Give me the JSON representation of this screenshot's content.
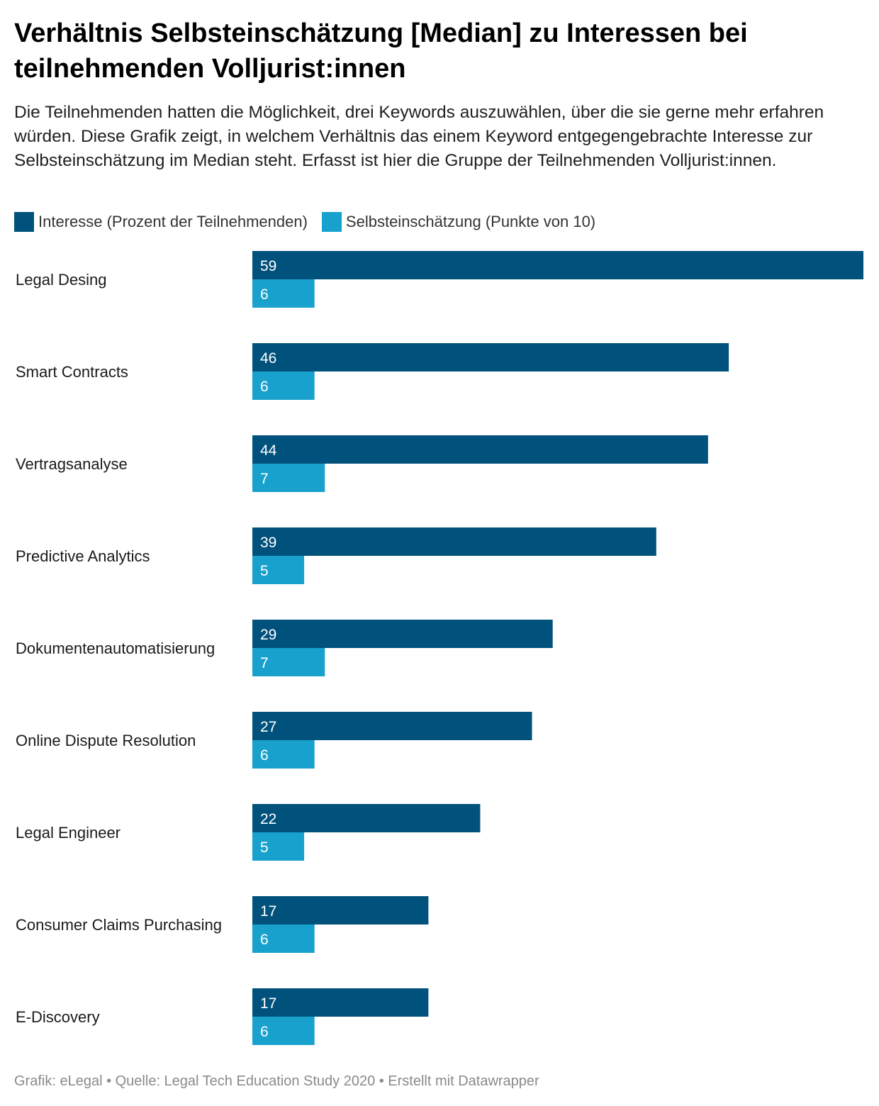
{
  "header": {
    "title": "Verhältnis Selbsteinschätzung [Median] zu Interessen bei teilnehmenden Volljurist:innen",
    "subtitle": "Die Teilnehmenden hatten die Möglichkeit, drei Keywords auszuwählen, über die sie gerne mehr erfahren würden. Diese Grafik zeigt, in welchem Verhältnis das einem Keyword entgegengebrachte Interesse zur Selbsteinschätzung im Median steht. Erfasst ist hier die Gruppe der Teilnehmenden Volljurist:innen."
  },
  "legend": {
    "items": [
      {
        "label": "Interesse (Prozent der Teilnehmenden)",
        "color": "#00527c"
      },
      {
        "label": "Selbsteinschätzung (Punkte von 10)",
        "color": "#18a1cd"
      }
    ]
  },
  "chart_data": {
    "type": "bar",
    "orientation": "horizontal",
    "title": "Verhältnis Selbsteinschätzung [Median] zu Interessen bei teilnehmenden Volljurist:innen",
    "categories": [
      "Legal Desing",
      "Smart Contracts",
      "Vertragsanalyse",
      "Predictive Analytics",
      "Dokumentenautomatisierung",
      "Online Dispute Resolution",
      "Legal Engineer",
      "Consumer Claims Purchasing",
      "E-Discovery"
    ],
    "series": [
      {
        "name": "Interesse (Prozent der Teilnehmenden)",
        "color": "#00527c",
        "values": [
          59,
          46,
          44,
          39,
          29,
          27,
          22,
          17,
          17
        ]
      },
      {
        "name": "Selbsteinschätzung (Punkte von 10)",
        "color": "#18a1cd",
        "values": [
          6,
          6,
          7,
          5,
          7,
          6,
          5,
          6,
          6
        ]
      }
    ],
    "xlim": [
      0,
      59
    ],
    "grid": false,
    "legend_position": "top-left",
    "value_labels": "inside-start"
  },
  "footer": {
    "text": "Grafik: eLegal • Quelle: Legal Tech Education Study 2020 • Erstellt mit Datawrapper"
  }
}
